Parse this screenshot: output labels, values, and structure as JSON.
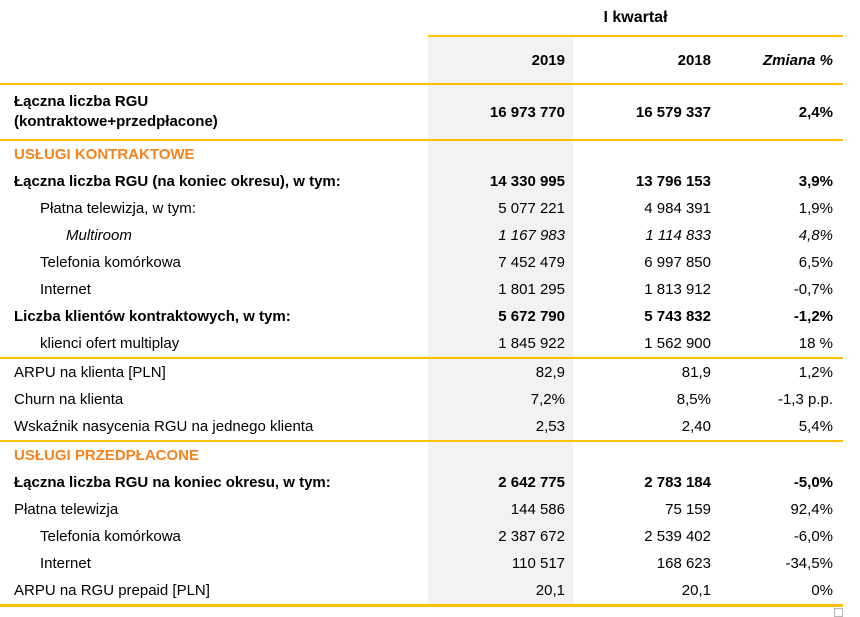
{
  "colors": {
    "gold_line": "#FFC000",
    "orange_section": "#F5831F",
    "col_2019_bg": "#F2F2F2",
    "text": "#000000"
  },
  "header": {
    "period": "I kwartał",
    "columns": [
      "2019",
      "2018",
      "Zmiana %"
    ]
  },
  "table": {
    "rows": [
      {
        "label": "Łączna liczba RGU\n(kontraktowe+przedpłacone)",
        "v2019": "16 973 770",
        "v2018": "16 579 337",
        "change": "2,4%",
        "style": "bold",
        "tall": true,
        "rule": "below",
        "indent": 0
      },
      {
        "label": "USŁUGI KONTRAKTOWE",
        "v2019": "",
        "v2018": "",
        "change": "",
        "style": "section",
        "indent": 0
      },
      {
        "label": "Łączna liczba RGU (na koniec okresu), w tym:",
        "v2019": "14 330 995",
        "v2018": "13 796 153",
        "change": "3,9%",
        "style": "bold",
        "indent": 0
      },
      {
        "label": "Płatna telewizja, w tym:",
        "v2019": "5 077 221",
        "v2018": "4 984 391",
        "change": "1,9%",
        "style": "normal",
        "indent": 1
      },
      {
        "label": "Multiroom",
        "v2019": "1 167 983",
        "v2018": "1 114 833",
        "change": "4,8%",
        "style": "italic",
        "indent": 2
      },
      {
        "label": "Telefonia komórkowa",
        "v2019": "7 452 479",
        "v2018": "6 997 850",
        "change": "6,5%",
        "style": "normal",
        "indent": 1
      },
      {
        "label": "Internet",
        "v2019": "1 801 295",
        "v2018": "1 813 912",
        "change": "-0,7%",
        "style": "normal",
        "indent": 1
      },
      {
        "label": "Liczba klientów kontraktowych, w tym:",
        "v2019": "5 672 790",
        "v2018": "5 743 832",
        "change": "-1,2%",
        "style": "bold",
        "indent": 0
      },
      {
        "label": "klienci ofert multiplay",
        "v2019": "1 845 922",
        "v2018": "1 562 900",
        "change": "18 %",
        "style": "normal",
        "rule": "below",
        "indent": 1
      },
      {
        "label": "ARPU na klienta [PLN]",
        "v2019": "82,9",
        "v2018": "81,9",
        "change": "1,2%",
        "style": "normal",
        "indent": 0
      },
      {
        "label": "Churn na klienta",
        "v2019": "7,2%",
        "v2018": "8,5%",
        "change": "-1,3 p.p.",
        "style": "normal",
        "indent": 0
      },
      {
        "label": "Wskaźnik nasycenia RGU na jednego klienta",
        "v2019": "2,53",
        "v2018": "2,40",
        "change": "5,4%",
        "style": "normal",
        "rule": "below",
        "indent": 0
      },
      {
        "label": "USŁUGI PRZEDPŁACONE",
        "v2019": "",
        "v2018": "",
        "change": "",
        "style": "section",
        "indent": 0
      },
      {
        "label": "Łączna liczba RGU na koniec okresu, w tym:",
        "v2019": "2 642 775",
        "v2018": "2 783 184",
        "change": "-5,0%",
        "style": "bold",
        "indent": 0
      },
      {
        "label": "Płatna telewizja",
        "v2019": "144 586",
        "v2018": "75 159",
        "change": "92,4%",
        "style": "normal",
        "indent": 0
      },
      {
        "label": "Telefonia komórkowa",
        "v2019": "2 387 672",
        "v2018": "2 539 402",
        "change": "-6,0%",
        "style": "normal",
        "indent": 1
      },
      {
        "label": "Internet",
        "v2019": "110 517",
        "v2018": "168 623",
        "change": "-34,5%",
        "style": "normal",
        "indent": 1
      },
      {
        "label": "ARPU na RGU prepaid [PLN]",
        "v2019": "20,1",
        "v2018": "20,1",
        "change": "0%",
        "style": "normal",
        "rule": "thick",
        "indent": 0
      }
    ]
  }
}
